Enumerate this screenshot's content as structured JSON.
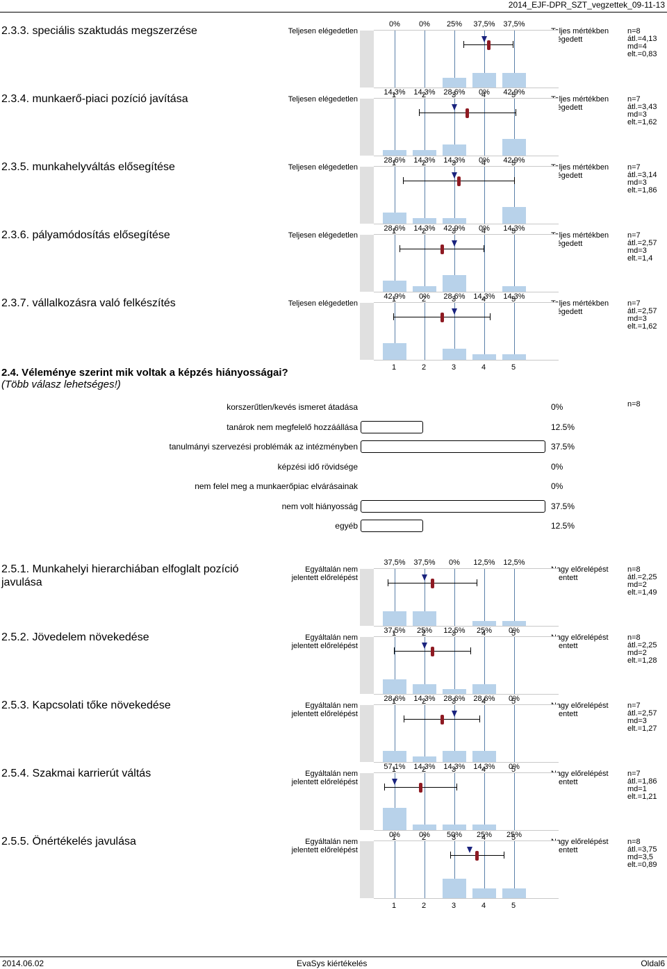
{
  "header": {
    "title": "2014_EJF-DPR_SZT_vegzettek_09-11-13"
  },
  "footer": {
    "date": "2014.06.02",
    "center": "EvaSys kiértékelés",
    "page": "Oldal6"
  },
  "scale": [
    "1",
    "2",
    "3",
    "4",
    "5"
  ],
  "colors": {
    "bar": "#b8d2ea",
    "mean": "#8e1a22",
    "median": "#1a237e"
  },
  "block1": [
    {
      "title": "2.3.3. speciális szaktudás megszerzése",
      "left": "Teljesen elégedetlen",
      "right": "Teljes mértékben elégedett",
      "pcts": [
        "0%",
        "0%",
        "25%",
        "37,5%",
        "37,5%"
      ],
      "values": [
        0,
        0,
        25,
        37.5,
        37.5
      ],
      "mean": 4.13,
      "median": 4,
      "dev_low": 3.3,
      "dev_high": 4.96,
      "stats": [
        "n=8",
        "átl.=4,13",
        "md=4",
        "elt.=0,83"
      ]
    },
    {
      "title": "2.3.4. munkaerő-piaci pozíció javítása",
      "left": "Teljesen elégedetlen",
      "right": "Teljes mértékben elégedett",
      "pcts": [
        "14,3%",
        "14,3%",
        "28,6%",
        "0%",
        "42,9%"
      ],
      "values": [
        14.3,
        14.3,
        28.6,
        0,
        42.9
      ],
      "mean": 3.43,
      "median": 3,
      "dev_low": 1.81,
      "dev_high": 5.05,
      "stats": [
        "n=7",
        "átl.=3,43",
        "md=3",
        "elt.=1,62"
      ]
    },
    {
      "title": "2.3.5. munkahelyváltás elősegítése",
      "left": "Teljesen elégedetlen",
      "right": "Teljes mértékben elégedett",
      "pcts": [
        "28,6%",
        "14,3%",
        "14,3%",
        "0%",
        "42,9%"
      ],
      "values": [
        28.6,
        14.3,
        14.3,
        0,
        42.9
      ],
      "mean": 3.14,
      "median": 3,
      "dev_low": 1.28,
      "dev_high": 5.0,
      "stats": [
        "n=7",
        "átl.=3,14",
        "md=3",
        "elt.=1,86"
      ]
    },
    {
      "title": "2.3.6. pályamódosítás elősegítése",
      "left": "Teljesen elégedetlen",
      "right": "Teljes mértékben elégedett",
      "pcts": [
        "28,6%",
        "14,3%",
        "42,9%",
        "0%",
        "14,3%"
      ],
      "values": [
        28.6,
        14.3,
        42.9,
        0,
        14.3
      ],
      "mean": 2.57,
      "median": 3,
      "dev_low": 1.17,
      "dev_high": 3.97,
      "stats": [
        "n=7",
        "átl.=2,57",
        "md=3",
        "elt.=1,4"
      ]
    },
    {
      "title": "2.3.7. vállalkozásra való felkészítés",
      "left": "Teljesen elégedetlen",
      "right": "Teljes mértékben elégedett",
      "pcts": [
        "42,9%",
        "0%",
        "28,6%",
        "14,3%",
        "14,3%"
      ],
      "values": [
        42.9,
        0,
        28.6,
        14.3,
        14.3
      ],
      "mean": 2.57,
      "median": 3,
      "dev_low": 0.95,
      "dev_high": 4.19,
      "stats": [
        "n=7",
        "átl.=2,57",
        "md=3",
        "elt.=1,62"
      ]
    }
  ],
  "multi": {
    "title": "2.4. Véleménye szerint mik voltak a képzés hiányosságai?",
    "subtitle": "(Több válasz lehetséges!)",
    "n": "n=8",
    "items": [
      {
        "label": "korszerűtlen/kevés ismeret átadása",
        "value": 0,
        "pct": "0%"
      },
      {
        "label": "tanárok nem megfelelő hozzáállása",
        "value": 12.5,
        "pct": "12.5%"
      },
      {
        "label": "tanulmányi szervezési problémák az intézményben",
        "value": 37.5,
        "pct": "37.5%"
      },
      {
        "label": "képzési idő rövidsége",
        "value": 0,
        "pct": "0%"
      },
      {
        "label": "nem felel meg a munkaerőpiac elvárásainak",
        "value": 0,
        "pct": "0%"
      },
      {
        "label": "nem volt hiányosság",
        "value": 37.5,
        "pct": "37.5%"
      },
      {
        "label": "egyéb",
        "value": 12.5,
        "pct": "12.5%"
      }
    ]
  },
  "block2": [
    {
      "title": "2.5.1. Munkahelyi hierarchiában elfoglalt pozíció javulása",
      "left": "Egyáltalán nem jelentett előrelépést",
      "right": "Nagy előrelépést jelentett",
      "pcts": [
        "37,5%",
        "37,5%",
        "0%",
        "12,5%",
        "12,5%"
      ],
      "values": [
        37.5,
        37.5,
        0,
        12.5,
        12.5
      ],
      "mean": 2.25,
      "median": 2,
      "dev_low": 0.76,
      "dev_high": 3.74,
      "stats": [
        "n=8",
        "átl.=2,25",
        "md=2",
        "elt.=1,49"
      ]
    },
    {
      "title": "2.5.2. Jövedelem növekedése",
      "left": "Egyáltalán nem jelentett előrelépést",
      "right": "Nagy előrelépést jelentett",
      "pcts": [
        "37,5%",
        "25%",
        "12,5%",
        "25%",
        "0%"
      ],
      "values": [
        37.5,
        25,
        12.5,
        25,
        0
      ],
      "mean": 2.25,
      "median": 2,
      "dev_low": 0.97,
      "dev_high": 3.53,
      "stats": [
        "n=8",
        "átl.=2,25",
        "md=2",
        "elt.=1,28"
      ]
    },
    {
      "title": "2.5.3. Kapcsolati tőke növekedése",
      "left": "Egyáltalán nem jelentett előrelépést",
      "right": "Nagy előrelépést jelentett",
      "pcts": [
        "28,6%",
        "14,3%",
        "28,6%",
        "28,6%",
        "0%"
      ],
      "values": [
        28.6,
        14.3,
        28.6,
        28.6,
        0
      ],
      "mean": 2.57,
      "median": 3,
      "dev_low": 1.3,
      "dev_high": 3.84,
      "stats": [
        "n=7",
        "átl.=2,57",
        "md=3",
        "elt.=1,27"
      ]
    },
    {
      "title": "2.5.4. Szakmai karrierút váltás",
      "left": "Egyáltalán nem jelentett előrelépést",
      "right": "Nagy előrelépést jelentett",
      "pcts": [
        "57,1%",
        "14,3%",
        "14,3%",
        "14,3%",
        "0%"
      ],
      "values": [
        57.1,
        14.3,
        14.3,
        14.3,
        0
      ],
      "mean": 1.86,
      "median": 1,
      "dev_low": 0.65,
      "dev_high": 3.07,
      "stats": [
        "n=7",
        "átl.=1,86",
        "md=1",
        "elt.=1,21"
      ]
    },
    {
      "title": "2.5.5. Önértékelés javulása",
      "left": "Egyáltalán nem jelentett előrelépést",
      "right": "Nagy előrelépést jelentett",
      "pcts": [
        "0%",
        "0%",
        "50%",
        "25%",
        "25%"
      ],
      "values": [
        0,
        0,
        50,
        25,
        25
      ],
      "mean": 3.75,
      "median": 3.5,
      "dev_low": 2.86,
      "dev_high": 4.64,
      "stats": [
        "n=8",
        "átl.=3,75",
        "md=3,5",
        "elt.=0,89"
      ]
    }
  ]
}
